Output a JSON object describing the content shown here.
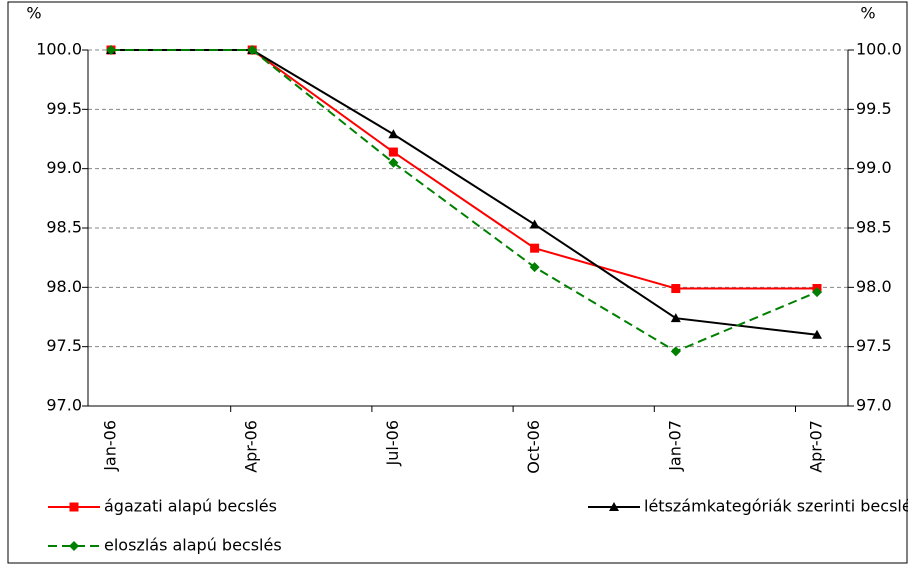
{
  "chart_data": {
    "type": "line",
    "ylabel": "%",
    "y2label": "%",
    "categories": [
      "Jan-06",
      "Apr-06",
      "Jul-06",
      "Oct-06",
      "Jan-07",
      "Apr-07"
    ],
    "series": [
      {
        "name": "ágazati alapú becslés",
        "color": "#ff0000",
        "marker": "square",
        "dash": false,
        "values": [
          100,
          100,
          99.14,
          98.33,
          97.99,
          97.99
        ]
      },
      {
        "name": "létszámkategóriák szerinti becslés",
        "color": "#000000",
        "marker": "triangle",
        "dash": false,
        "values": [
          100,
          100,
          99.29,
          98.53,
          97.74,
          97.6
        ]
      },
      {
        "name": "eloszlás alapú becslés",
        "color": "#008000",
        "marker": "diamond",
        "dash": true,
        "values": [
          100,
          100,
          99.05,
          98.17,
          97.46,
          97.96
        ]
      }
    ],
    "ylim": [
      97,
      100
    ],
    "yticks": [
      {
        "value": 97,
        "label": "97.0"
      },
      97.5,
      {
        "value": 98,
        "label": "98.0"
      },
      98.5,
      {
        "value": 99,
        "label": "99.0"
      },
      99.5,
      {
        "value": 100,
        "label": "100.0"
      }
    ],
    "y2lim": [
      97,
      100
    ],
    "y2ticks": [
      {
        "value": 97,
        "label": "97.0"
      },
      97.5,
      {
        "value": 98,
        "label": "98.0"
      },
      98.5,
      {
        "value": 99,
        "label": "99.0"
      },
      99.5,
      {
        "value": 100,
        "label": "100.0"
      }
    ],
    "grid": true
  }
}
